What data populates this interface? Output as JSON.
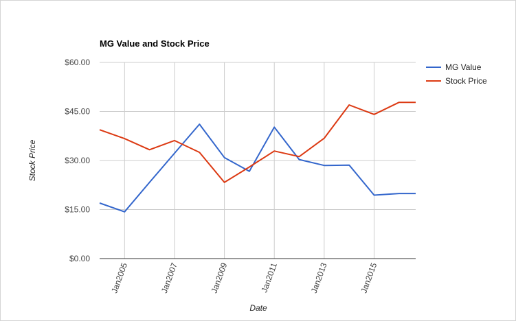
{
  "chart_data": {
    "type": "line",
    "title": "MG Value and Stock Price",
    "xlabel": "Date",
    "ylabel": "Stock Price",
    "x_tick_labels": [
      "Jan2005",
      "Jan2007",
      "Jan2009",
      "Jan2011",
      "Jan2013",
      "Jan2015"
    ],
    "x_range": [
      "Jan2004",
      "Sep2016"
    ],
    "ylim": [
      0,
      60
    ],
    "y_ticks": [
      0,
      15,
      30,
      45,
      60
    ],
    "y_tick_labels": [
      "$0.00",
      "$15.00",
      "$30.00",
      "$45.00",
      "$60.00"
    ],
    "x": [
      "Jan2004",
      "Jan2005",
      "Jan2006",
      "Jan2007",
      "Jan2008",
      "Jan2009",
      "Jan2010",
      "Jan2011",
      "Jan2012",
      "Jan2013",
      "Jan2014",
      "Jan2015",
      "Jan2016",
      "Sep2016"
    ],
    "series": [
      {
        "name": "MG Value",
        "color": "#3366cc",
        "values": [
          17.0,
          14.3,
          23.3,
          32.2,
          41.1,
          30.9,
          26.7,
          40.2,
          30.3,
          28.5,
          28.6,
          19.4,
          19.9,
          19.9
        ]
      },
      {
        "name": "Stock Price",
        "color": "#dc3912",
        "values": [
          39.4,
          36.7,
          33.3,
          36.1,
          32.5,
          23.3,
          28.0,
          32.9,
          31.2,
          36.8,
          47.0,
          44.1,
          47.8,
          47.8
        ]
      }
    ],
    "grid": true,
    "legend_position": "right"
  }
}
